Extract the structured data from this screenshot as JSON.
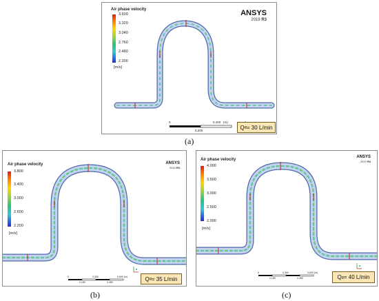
{
  "colors": {
    "pipe_outline": "#4a6aa8",
    "pipe_fill": "#c7d3ee",
    "qbox_fill": "#fbe7b6"
  },
  "panels": [
    {
      "id": "a",
      "legend_title": "Air phase velocity",
      "ticks": [
        "3.600",
        "3.320",
        "3.040",
        "2.760",
        "2.480",
        "2.200"
      ],
      "unit": "[m/s]",
      "logo": "ANSYS",
      "version_year": "2019",
      "version_release": "R3",
      "flow_label_prefix": "Q",
      "flow_label_sub": "g",
      "flow_label_value": "= 30 L/min",
      "scale_ticks": [
        "0",
        "0.400",
        "(m)"
      ],
      "scale_mid": "0.200",
      "caption": "(a)"
    },
    {
      "id": "b",
      "legend_title": "Air phase velocity",
      "ticks": [
        "3.800",
        "3.400",
        "3.000",
        "2.600",
        "2.200"
      ],
      "unit": "[m/s]",
      "logo": "ANSYS",
      "version_year": "2019",
      "version_release": "R3",
      "flow_label_prefix": "Q",
      "flow_label_sub": "g",
      "flow_label_value": "= 35 L/min",
      "scale_ticks": [
        "0",
        "0.300",
        "0.600 (m)"
      ],
      "scale_mid": "0.150",
      "scale_mid2": "0.450",
      "caption": "(b)"
    },
    {
      "id": "c",
      "legend_title": "Air phase velocity",
      "ticks": [
        "4.000",
        "3.500",
        "3.000",
        "2.500",
        "2.000"
      ],
      "unit": "[m/s]",
      "logo": "ANSYS",
      "version_year": "2019",
      "version_release": "R3",
      "flow_label_prefix": "Q",
      "flow_label_sub": "g",
      "flow_label_value": "= 40 L/min",
      "scale_ticks": [
        "0",
        "0.300",
        "0.600 (m)"
      ],
      "scale_mid": "0.150",
      "scale_mid2": "0.450",
      "caption": "(c)"
    }
  ]
}
